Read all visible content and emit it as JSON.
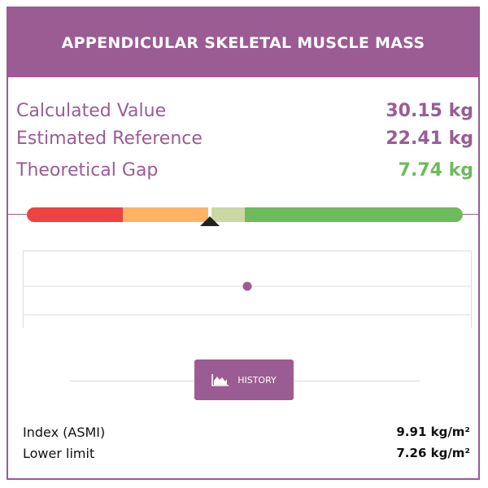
{
  "header": {
    "title": "APPENDICULAR SKELETAL MUSCLE MASS"
  },
  "metrics": [
    {
      "label": "Calculated Value",
      "value": "30.15 kg"
    },
    {
      "label": "Estimated Reference",
      "value": "22.41 kg"
    },
    {
      "label": "Theoretical Gap",
      "value": "7.74 kg"
    }
  ],
  "gauge": {
    "segments": [
      {
        "color": "#ef4242",
        "fraction": 0.22
      },
      {
        "color": "#ffb464",
        "fraction": 0.2
      },
      {
        "color": "#cbd8a3",
        "fraction": 0.08
      },
      {
        "color": "#6dbb5c",
        "fraction": 0.5
      }
    ],
    "marker_fraction": 0.42
  },
  "history_chart": {
    "point_fraction": 0.5
  },
  "history_button": {
    "label": "HISTORY",
    "icon": "area-chart-icon"
  },
  "details": [
    {
      "label": "Index (ASMI)",
      "value": "9.91 kg/m²"
    },
    {
      "label": "Lower limit",
      "value": "7.26 kg/m²"
    }
  ],
  "colors": {
    "accent": "#9b5b93",
    "positive": "#6dbb5c"
  }
}
